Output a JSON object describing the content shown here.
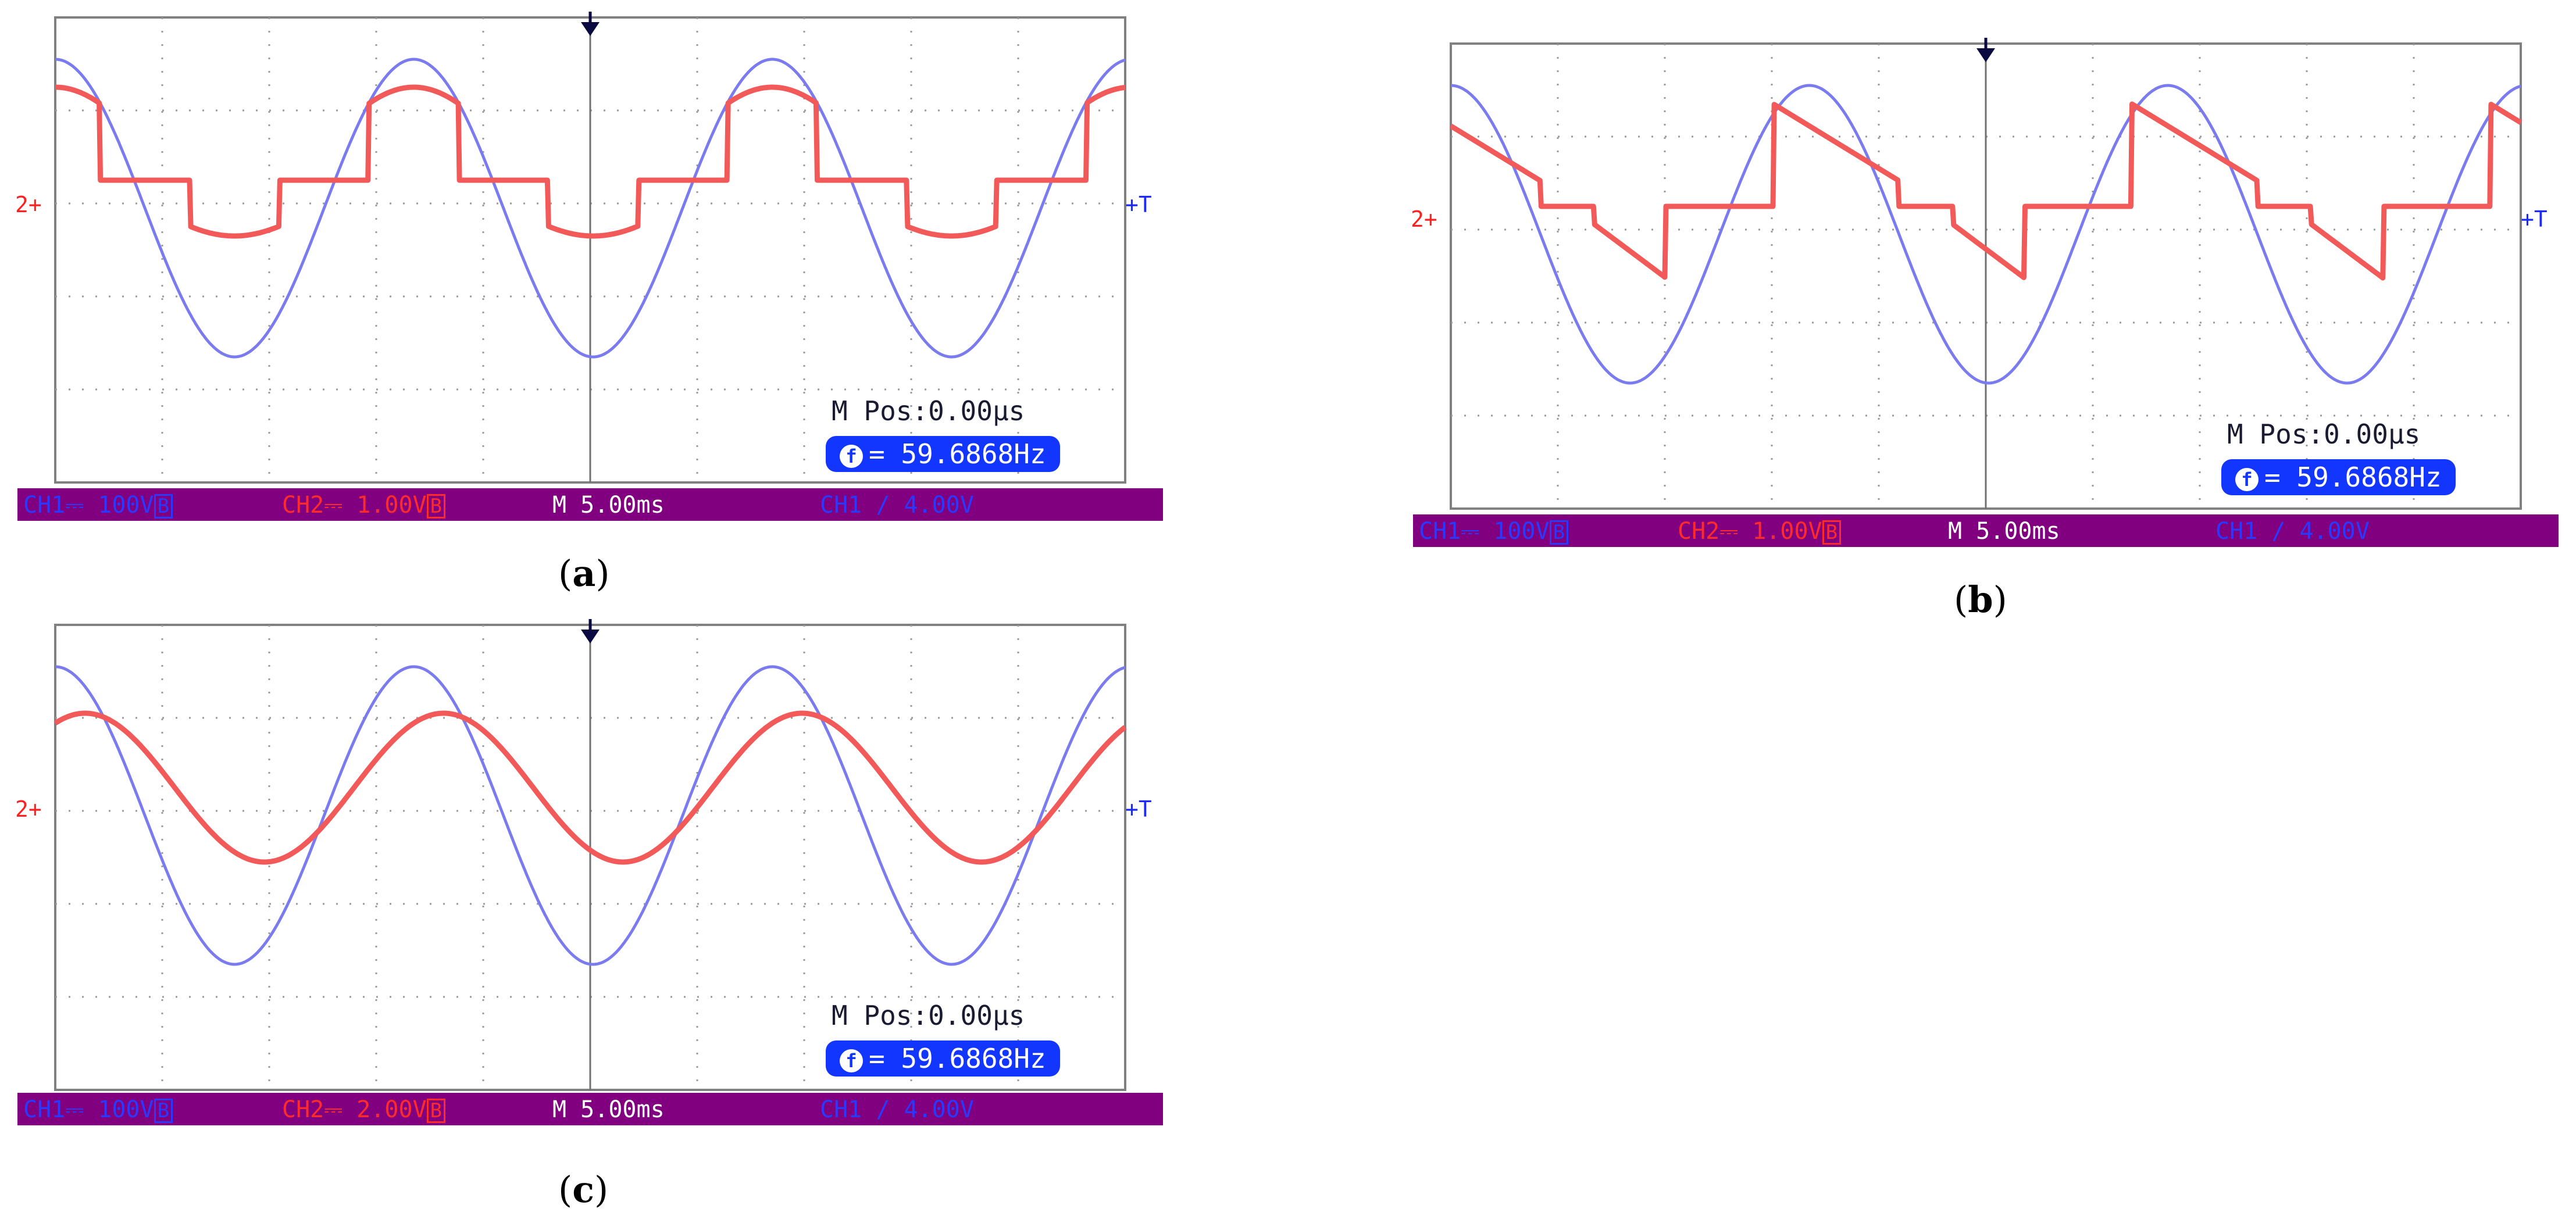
{
  "colors": {
    "ch1": "#7b7bf0",
    "ch2": "#f25a5a",
    "status_bg": "#800080",
    "freq_bg": "#1336ff",
    "grid": "#9a9a9a"
  },
  "panels": [
    {
      "caption": "a",
      "ch1_label": "CH1⎓ 100V",
      "ch2_label": "CH2⎓ 1.00V",
      "timebase": "M 5.00ms",
      "trigger": "CH1 ∕ 4.00V",
      "mpos": "M Pos:0.00μs",
      "freq": "= 59.6868Hz",
      "ch2_marker": "2+",
      "trig_marker": "+T",
      "chart_data": {
        "type": "line",
        "time_per_div_ms": 5.0,
        "divisions_x": 10,
        "divisions_y": 5,
        "series": [
          {
            "name": "CH1",
            "kind": "sine",
            "amplitude_div": 1.6,
            "offset_div": 0.0,
            "phase_deg": 90,
            "clip_div": 1.6
          },
          {
            "name": "CH2",
            "kind": "quasi-square",
            "amplitude_div": 1.0,
            "offset_div": 0.0,
            "phase_deg": 90,
            "flat_fraction": 0.5
          }
        ],
        "frequency_hz": 59.6868
      }
    },
    {
      "caption": "b",
      "ch1_label": "CH1⎓ 100V",
      "ch2_label": "CH2⎓ 1.00V",
      "timebase": "M 5.00ms",
      "trigger": "CH1 ∕ 4.00V",
      "mpos": "M Pos:0.00μs",
      "freq": "= 59.6868Hz",
      "ch2_marker": "2+",
      "trig_marker": "+T",
      "chart_data": {
        "type": "line",
        "time_per_div_ms": 5.0,
        "divisions_x": 10,
        "divisions_y": 5,
        "series": [
          {
            "name": "CH1",
            "kind": "sine",
            "amplitude_div": 1.6,
            "offset_div": 0.0,
            "phase_deg": 90,
            "clip_div": 1.6
          },
          {
            "name": "CH2",
            "kind": "chopped",
            "amplitude_div": 1.1,
            "offset_div": 0.0,
            "phase_deg": 90,
            "flat_fraction": 0.35
          }
        ],
        "frequency_hz": 59.6868
      }
    },
    {
      "caption": "c",
      "ch1_label": "CH1⎓ 100V",
      "ch2_label": "CH2⎓ 2.00V",
      "timebase": "M 5.00ms",
      "trigger": "CH1 ∕ 4.00V",
      "mpos": "M Pos:0.00μs",
      "freq": "= 59.6868Hz",
      "ch2_marker": "2+",
      "trig_marker": "+T",
      "chart_data": {
        "type": "line",
        "time_per_div_ms": 5.0,
        "divisions_x": 10,
        "divisions_y": 5,
        "series": [
          {
            "name": "CH1",
            "kind": "sine",
            "amplitude_div": 1.6,
            "offset_div": 0.0,
            "phase_deg": 90,
            "clip_div": 1.6
          },
          {
            "name": "CH2",
            "kind": "sine",
            "amplitude_div": 0.8,
            "offset_div": 0.0,
            "phase_deg": 60,
            "clip_div": 0.8
          }
        ],
        "frequency_hz": 59.6868
      }
    }
  ]
}
